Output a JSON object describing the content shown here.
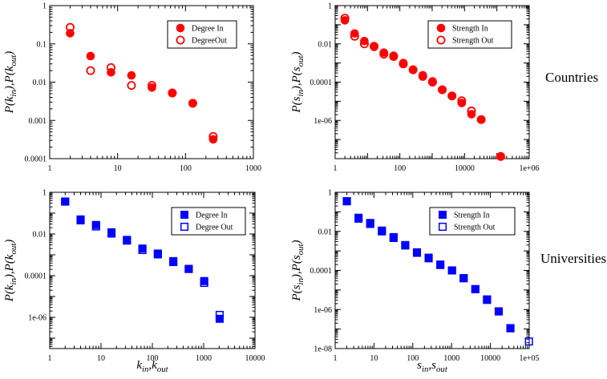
{
  "row_labels": {
    "top": "Countries",
    "bottom": "Universities"
  },
  "colors": {
    "red": "#ff0000",
    "blue": "#0000ff"
  },
  "chart_data": [
    {
      "id": "countries-degree",
      "type": "scatter",
      "xscale": "log",
      "yscale": "log",
      "xlim": [
        1,
        1000
      ],
      "ylim": [
        0.0001,
        1
      ],
      "xticks": [
        "1",
        "10",
        "100",
        "1000"
      ],
      "yticks": [
        "0.0001",
        "0.001",
        "0.01",
        "0.1",
        "1"
      ],
      "ylabel": {
        "main": "P(k",
        "sub1": "in",
        "mid": "),P(k",
        "sub2": "out",
        "end": ")"
      },
      "xlabel": null,
      "series": [
        {
          "name": "Degree In",
          "marker": "filled-circle",
          "color": "#ff0000",
          "points": [
            [
              2,
              0.19
            ],
            [
              4,
              0.048
            ],
            [
              8,
              0.018
            ],
            [
              16,
              0.015
            ],
            [
              32,
              0.0072
            ],
            [
              64,
              0.0052
            ],
            [
              128,
              0.0028
            ],
            [
              256,
              0.00032
            ]
          ]
        },
        {
          "name": "DegreeOut",
          "marker": "open-circle",
          "color": "#ff0000",
          "points": [
            [
              2,
              0.27
            ],
            [
              4,
              0.02
            ],
            [
              8,
              0.024
            ],
            [
              16,
              0.0082
            ],
            [
              32,
              0.0082
            ],
            [
              64,
              0.0052
            ],
            [
              128,
              0.0028
            ],
            [
              256,
              0.00038
            ]
          ]
        }
      ]
    },
    {
      "id": "countries-strength",
      "type": "scatter",
      "xscale": "log",
      "yscale": "log",
      "xlim": [
        1,
        1000000
      ],
      "ylim": [
        1e-08,
        1
      ],
      "xticks": [
        "1",
        "100",
        "10000",
        "1e+06"
      ],
      "yticks": [
        "1e-06",
        "0.0001",
        "0.01",
        "1"
      ],
      "ylabel": {
        "main": "P(s",
        "sub1": "in",
        "mid": "),P(s",
        "sub2": "out",
        "end": ")"
      },
      "xlabel": null,
      "series": [
        {
          "name": "Strength In",
          "marker": "filled-circle",
          "color": "#ff0000",
          "points": [
            [
              2,
              0.17
            ],
            [
              4,
              0.035
            ],
            [
              8,
              0.014
            ],
            [
              16,
              0.007
            ],
            [
              32,
              0.0035
            ],
            [
              64,
              0.0024
            ],
            [
              128,
              0.001
            ],
            [
              256,
              0.00045
            ],
            [
              512,
              0.00023
            ],
            [
              1024,
              0.00011
            ],
            [
              2048,
              4e-05
            ],
            [
              4096,
              1.9e-05
            ],
            [
              8192,
              8.1e-06
            ],
            [
              16384,
              2.1e-06
            ],
            [
              32768,
              1.1e-06
            ],
            [
              131072,
              1.3e-08
            ]
          ]
        },
        {
          "name": "Strength Out",
          "marker": "open-circle",
          "color": "#ff0000",
          "points": [
            [
              2,
              0.22
            ],
            [
              4,
              0.025
            ],
            [
              8,
              0.01
            ],
            [
              16,
              0.0075
            ],
            [
              32,
              0.0029
            ],
            [
              64,
              0.0022
            ],
            [
              128,
              0.0009
            ],
            [
              256,
              0.00044
            ],
            [
              512,
              0.0002
            ],
            [
              1024,
              0.0001
            ],
            [
              2048,
              4e-05
            ],
            [
              4096,
              1.9e-05
            ],
            [
              8192,
              1.06e-05
            ],
            [
              16384,
              3.1e-06
            ],
            [
              32768,
              1.1e-06
            ],
            [
              131072,
              1.3e-08
            ]
          ]
        }
      ]
    },
    {
      "id": "universities-degree",
      "type": "scatter",
      "xscale": "log",
      "yscale": "log",
      "xlim": [
        1,
        10000
      ],
      "ylim": [
        3.16e-08,
        1
      ],
      "xticks": [
        "1",
        "10",
        "100",
        "1000",
        "10000"
      ],
      "yticks": [
        "1e-06",
        "0.0001",
        "0.01",
        "1"
      ],
      "ylabel": {
        "main": "P(k",
        "sub1": "in",
        "mid": "),P(k",
        "sub2": "out",
        "end": ")"
      },
      "xlabel": {
        "main": "k",
        "sub1": "in",
        "mid": ",k",
        "sub2": "out",
        "end": ""
      },
      "series": [
        {
          "name": "Degree In",
          "marker": "filled-square",
          "color": "#0000ff",
          "points": [
            [
              2,
              0.36
            ],
            [
              4,
              0.05
            ],
            [
              8,
              0.027
            ],
            [
              16,
              0.012
            ],
            [
              32,
              0.0052
            ],
            [
              64,
              0.002
            ],
            [
              128,
              0.00115
            ],
            [
              256,
              0.0005
            ],
            [
              512,
              0.00021
            ],
            [
              1024,
              5.5e-05
            ],
            [
              2048,
              8.5e-07
            ]
          ]
        },
        {
          "name": "Degree Out",
          "marker": "open-square",
          "color": "#0000ff",
          "points": [
            [
              2,
              0.36
            ],
            [
              4,
              0.045
            ],
            [
              8,
              0.023
            ],
            [
              16,
              0.0105
            ],
            [
              32,
              0.0048
            ],
            [
              64,
              0.0017
            ],
            [
              128,
              0.00105
            ],
            [
              256,
              0.00045
            ],
            [
              512,
              0.00021
            ],
            [
              1024,
              4.5e-05
            ],
            [
              2048,
              1.3e-06
            ]
          ]
        }
      ]
    },
    {
      "id": "universities-strength",
      "type": "scatter",
      "xscale": "log",
      "yscale": "log",
      "xlim": [
        1,
        100000
      ],
      "ylim": [
        1e-08,
        1
      ],
      "xticks": [
        "1",
        "10",
        "100",
        "1000",
        "10000",
        "1e+05"
      ],
      "yticks": [
        "1e-08",
        "1e-06",
        "0.0001",
        "0.01",
        "1"
      ],
      "ylabel": {
        "main": "P(s",
        "sub1": "in",
        "mid": "),P(s",
        "sub2": "out",
        "end": ")"
      },
      "xlabel": {
        "main": "s",
        "sub1": "in",
        "mid": ",s",
        "sub2": "out",
        "end": ""
      },
      "series": [
        {
          "name": "Strength In",
          "marker": "filled-square",
          "color": "#0000ff",
          "points": [
            [
              2,
              0.35
            ],
            [
              4,
              0.05
            ],
            [
              8,
              0.027
            ],
            [
              16,
              0.011
            ],
            [
              32,
              0.0051
            ],
            [
              64,
              0.002
            ],
            [
              128,
              0.00085
            ],
            [
              256,
              0.00045
            ],
            [
              512,
              0.0002
            ],
            [
              1024,
              0.0001
            ],
            [
              2048,
              4e-05
            ],
            [
              4096,
              1.1e-05
            ],
            [
              8192,
              3.3e-06
            ],
            [
              16384,
              8e-07
            ],
            [
              32768,
              1.1e-07
            ]
          ]
        },
        {
          "name": "Strength Out",
          "marker": "open-square",
          "color": "#0000ff",
          "points": [
            [
              2,
              0.35
            ],
            [
              4,
              0.045
            ],
            [
              8,
              0.024
            ],
            [
              16,
              0.01
            ],
            [
              32,
              0.0046
            ],
            [
              64,
              0.0019
            ],
            [
              128,
              0.0008
            ],
            [
              256,
              0.00042
            ],
            [
              512,
              0.00019
            ],
            [
              1024,
              0.0001
            ],
            [
              2048,
              4e-05
            ],
            [
              4096,
              1.1e-05
            ],
            [
              8192,
              3.1e-06
            ],
            [
              16384,
              8e-07
            ],
            [
              32768,
              1.1e-07
            ],
            [
              98304,
              2.3e-08
            ]
          ]
        }
      ]
    }
  ]
}
